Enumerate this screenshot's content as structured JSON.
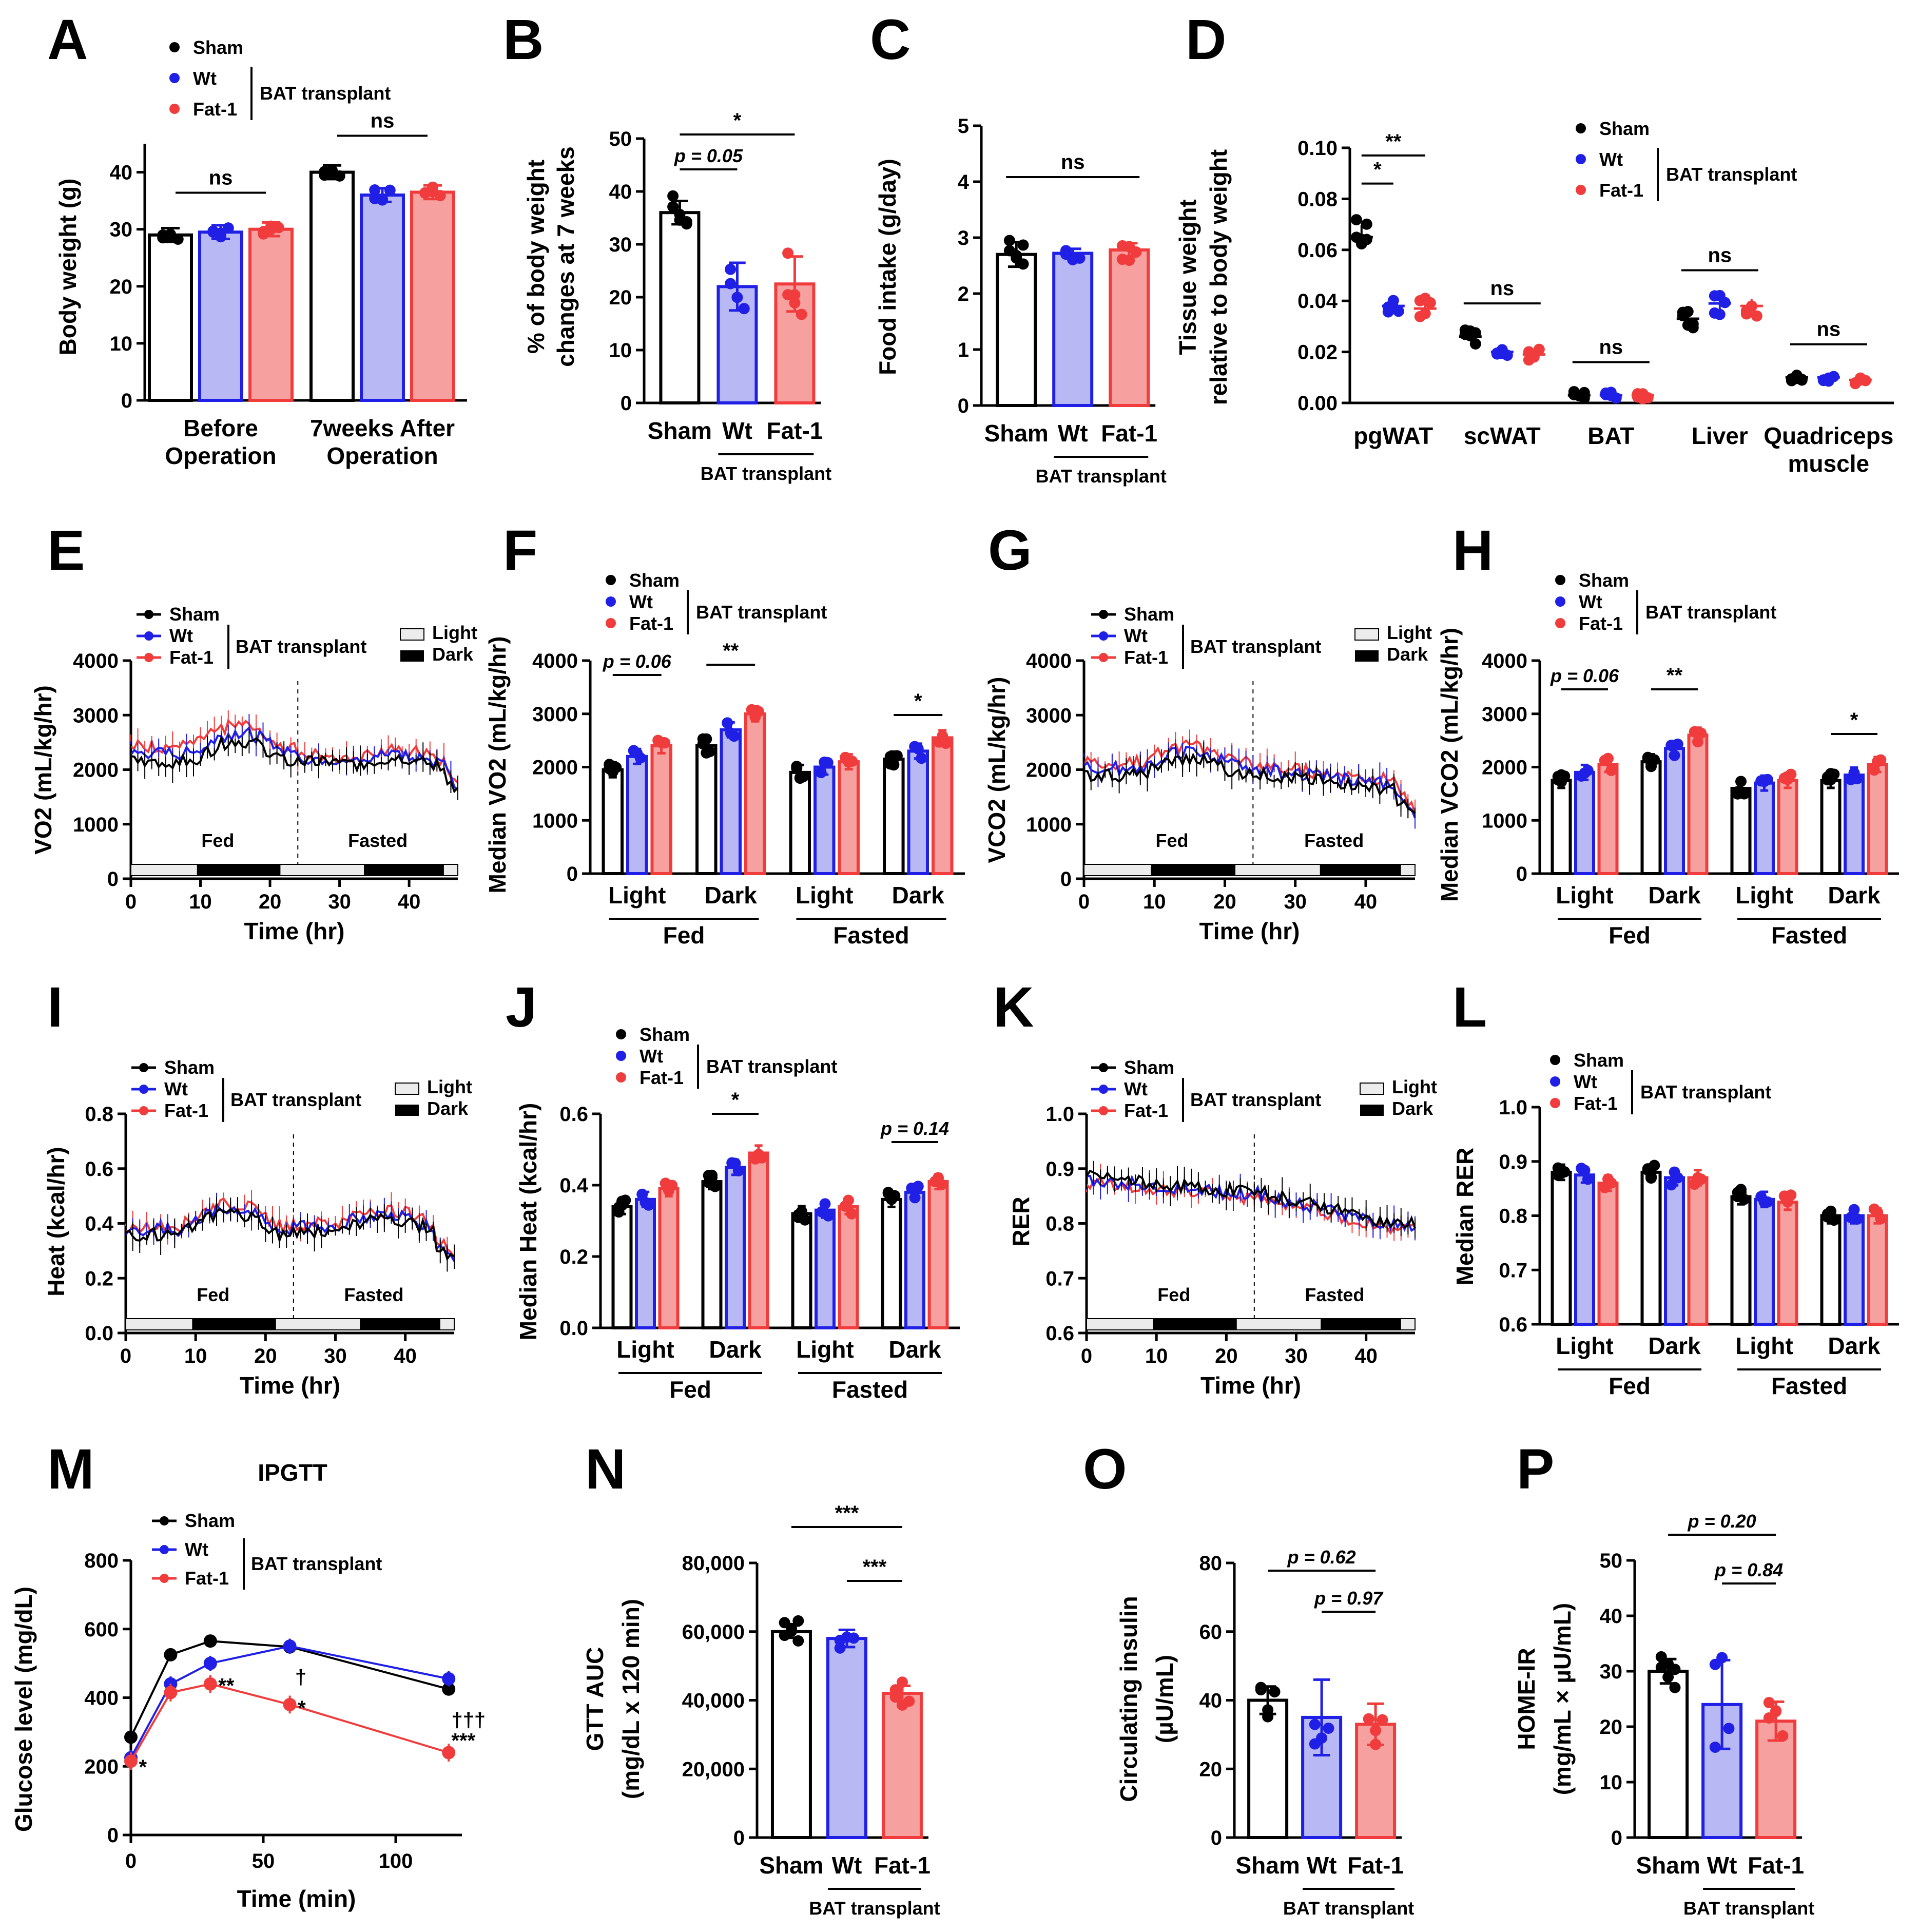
{
  "colors": {
    "sham": "#000000",
    "wt": "#1f1fe6",
    "fat1": "#f03c3c",
    "wt_fill": "#b8b8f4",
    "fat1_fill": "#f7a0a0"
  },
  "legend": {
    "sham": "Sham",
    "wt": "Wt",
    "fat1": "Fat-1",
    "group": "BAT transplant",
    "light": "Light",
    "dark": "Dark"
  },
  "chart_data": [
    {
      "id": "A",
      "type": "bar",
      "ylabel": "Body weight (g)",
      "ylim": [
        0,
        40
      ],
      "yticks": [
        0,
        10,
        20,
        30,
        40
      ],
      "categories": [
        "Before Operation",
        "7weeks After Operation"
      ],
      "series": [
        {
          "name": "Sham",
          "values": [
            29,
            40
          ]
        },
        {
          "name": "Wt",
          "values": [
            29.5,
            36
          ]
        },
        {
          "name": "Fat-1",
          "values": [
            30,
            36.5
          ]
        }
      ],
      "significance": [
        "ns",
        "ns"
      ]
    },
    {
      "id": "B",
      "type": "bar",
      "ylabel": "% of body weight changes at 7 weeks",
      "ylim": [
        0,
        50
      ],
      "yticks": [
        0,
        10,
        20,
        30,
        40,
        50
      ],
      "categories": [
        "Sham",
        "Wt",
        "Fat-1"
      ],
      "values": [
        36,
        22,
        22.5
      ],
      "errors": [
        2.2,
        4.5,
        5.2
      ],
      "group_label": "BAT transplant",
      "significance": [
        "p = 0.05",
        "*"
      ]
    },
    {
      "id": "C",
      "type": "bar",
      "ylabel": "Food intake (g/day)",
      "ylim": [
        0,
        5
      ],
      "yticks": [
        0,
        1,
        2,
        3,
        4,
        5
      ],
      "categories": [
        "Sham",
        "Wt",
        "Fat-1"
      ],
      "values": [
        2.7,
        2.72,
        2.78
      ],
      "errors": [
        0.22,
        0.08,
        0.12
      ],
      "group_label": "BAT transplant",
      "significance": [
        "ns"
      ]
    },
    {
      "id": "D",
      "type": "scatter",
      "ylabel": "Tissue weight relative to body weight",
      "ylim": [
        0,
        0.1
      ],
      "yticks": [
        "0.00",
        "0.02",
        "0.04",
        "0.06",
        "0.08",
        "0.10"
      ],
      "categories": [
        "pgWAT",
        "scWAT",
        "BAT",
        "Liver",
        "Quadriceps muscle"
      ],
      "series": [
        {
          "name": "Sham",
          "values": [
            0.065,
            0.026,
            0.003,
            0.033,
            0.01
          ]
        },
        {
          "name": "Wt",
          "values": [
            0.038,
            0.02,
            0.003,
            0.039,
            0.01
          ]
        },
        {
          "name": "Fat-1",
          "values": [
            0.037,
            0.019,
            0.003,
            0.038,
            0.009
          ]
        }
      ],
      "significance": [
        "*",
        "**",
        "ns",
        "ns",
        "ns",
        "ns"
      ]
    },
    {
      "id": "E",
      "type": "line",
      "ylabel": "VO2 (mL/kg/hr)",
      "xlabel": "Time (hr)",
      "ylim": [
        0,
        4000
      ],
      "yticks": [
        0,
        1000,
        2000,
        3000,
        4000
      ],
      "xticks": [
        0,
        10,
        20,
        30,
        40
      ],
      "phases": [
        "Fed",
        "Fasted"
      ]
    },
    {
      "id": "F",
      "type": "bar",
      "ylabel": "Median VO2 (mL/kg/hr)",
      "ylim": [
        0,
        4000
      ],
      "yticks": [
        0,
        1000,
        2000,
        3000,
        4000
      ],
      "categories": [
        "Light",
        "Dark",
        "Light",
        "Dark"
      ],
      "groups": [
        "Fed",
        "Fasted"
      ],
      "series": [
        {
          "name": "Sham",
          "values": [
            1950,
            2400,
            1900,
            2150
          ]
        },
        {
          "name": "Wt",
          "values": [
            2200,
            2700,
            2000,
            2300
          ]
        },
        {
          "name": "Fat-1",
          "values": [
            2400,
            3000,
            2100,
            2550
          ]
        }
      ],
      "significance": [
        "p = 0.06",
        "**",
        "*"
      ]
    },
    {
      "id": "G",
      "type": "line",
      "ylabel": "VCO2 (mL/kg/hr)",
      "xlabel": "Time (hr)",
      "ylim": [
        0,
        4000
      ],
      "yticks": [
        0,
        1000,
        2000,
        3000,
        4000
      ],
      "xticks": [
        0,
        10,
        20,
        30,
        40
      ],
      "phases": [
        "Fed",
        "Fasted"
      ]
    },
    {
      "id": "H",
      "type": "bar",
      "ylabel": "Median VCO2 (mL/kg/hr)",
      "ylim": [
        0,
        4000
      ],
      "yticks": [
        0,
        1000,
        2000,
        3000,
        4000
      ],
      "categories": [
        "Light",
        "Dark",
        "Light",
        "Dark"
      ],
      "groups": [
        "Fed",
        "Fasted"
      ],
      "series": [
        {
          "name": "Sham",
          "values": [
            1750,
            2100,
            1600,
            1750
          ]
        },
        {
          "name": "Wt",
          "values": [
            1900,
            2350,
            1700,
            1850
          ]
        },
        {
          "name": "Fat-1",
          "values": [
            2050,
            2600,
            1750,
            2050
          ]
        }
      ],
      "significance": [
        "p = 0.06",
        "**",
        "*"
      ]
    },
    {
      "id": "I",
      "type": "line",
      "ylabel": "Heat (kcal/hr)",
      "xlabel": "Time (hr)",
      "ylim": [
        0,
        0.8
      ],
      "yticks": [
        "0.0",
        "0.2",
        "0.4",
        "0.6",
        "0.8"
      ],
      "xticks": [
        0,
        10,
        20,
        30,
        40
      ],
      "phases": [
        "Fed",
        "Fasted"
      ]
    },
    {
      "id": "J",
      "type": "bar",
      "ylabel": "Median Heat (kcal/hr)",
      "ylim": [
        0,
        0.6
      ],
      "yticks": [
        "0.0",
        "0.2",
        "0.4",
        "0.6"
      ],
      "categories": [
        "Light",
        "Dark",
        "Light",
        "Dark"
      ],
      "groups": [
        "Fed",
        "Fasted"
      ],
      "series": [
        {
          "name": "Sham",
          "values": [
            0.34,
            0.41,
            0.32,
            0.36
          ]
        },
        {
          "name": "Wt",
          "values": [
            0.36,
            0.45,
            0.33,
            0.38
          ]
        },
        {
          "name": "Fat-1",
          "values": [
            0.39,
            0.49,
            0.34,
            0.41
          ]
        }
      ],
      "significance": [
        "*",
        "p = 0.14"
      ]
    },
    {
      "id": "K",
      "type": "line",
      "ylabel": "RER",
      "xlabel": "Time (hr)",
      "ylim": [
        0.6,
        1.0
      ],
      "yticks": [
        "0.6",
        "0.7",
        "0.8",
        "0.9",
        "1.0"
      ],
      "xticks": [
        0,
        10,
        20,
        30,
        40
      ],
      "phases": [
        "Fed",
        "Fasted"
      ]
    },
    {
      "id": "L",
      "type": "bar",
      "ylabel": "Median RER",
      "ylim": [
        0.6,
        1.0
      ],
      "yticks": [
        "0.6",
        "0.7",
        "0.8",
        "0.9",
        "1.0"
      ],
      "categories": [
        "Light",
        "Dark",
        "Light",
        "Dark"
      ],
      "groups": [
        "Fed",
        "Fasted"
      ],
      "series": [
        {
          "name": "Sham",
          "values": [
            0.88,
            0.88,
            0.835,
            0.8
          ]
        },
        {
          "name": "Wt",
          "values": [
            0.875,
            0.87,
            0.83,
            0.8
          ]
        },
        {
          "name": "Fat-1",
          "values": [
            0.86,
            0.87,
            0.825,
            0.8
          ]
        }
      ]
    },
    {
      "id": "M",
      "type": "line",
      "title": "IPGTT",
      "ylabel": "Glucose level (mg/dL)",
      "xlabel": "Time (min)",
      "ylim": [
        0,
        800
      ],
      "yticks": [
        0,
        200,
        400,
        600,
        800
      ],
      "xticks": [
        0,
        50,
        100
      ],
      "x": [
        0,
        15,
        30,
        60,
        120
      ],
      "series": [
        {
          "name": "Sham",
          "values": [
            285,
            525,
            565,
            548,
            425
          ]
        },
        {
          "name": "Wt",
          "values": [
            225,
            440,
            500,
            550,
            455
          ]
        },
        {
          "name": "Fat-1",
          "values": [
            215,
            415,
            440,
            380,
            240
          ]
        }
      ],
      "annotations": [
        "*",
        "**",
        "†",
        "*",
        "†††",
        "***"
      ]
    },
    {
      "id": "N",
      "type": "bar",
      "ylabel": "GTT AUC (mg/dL x 120 min)",
      "ylim": [
        0,
        80000
      ],
      "yticks": [
        "0",
        "20,000",
        "40,000",
        "60,000",
        "80,000"
      ],
      "categories": [
        "Sham",
        "Wt",
        "Fat-1"
      ],
      "values": [
        60000,
        58000,
        42000
      ],
      "errors": [
        1800,
        2500,
        2200
      ],
      "group_label": "BAT transplant",
      "significance": [
        "***",
        "***"
      ]
    },
    {
      "id": "O",
      "type": "bar",
      "ylabel": "Circulating insulin (µU/mL)",
      "ylim": [
        0,
        80
      ],
      "yticks": [
        0,
        20,
        40,
        60,
        80
      ],
      "categories": [
        "Sham",
        "Wt",
        "Fat-1"
      ],
      "values": [
        40,
        35,
        33
      ],
      "errors": [
        4,
        11,
        6
      ],
      "group_label": "BAT transplant",
      "significance": [
        "p = 0.62",
        "p = 0.97"
      ]
    },
    {
      "id": "P",
      "type": "bar",
      "ylabel": "HOME-IR (mg/mL × µU/mL)",
      "ylim": [
        0,
        50
      ],
      "yticks": [
        0,
        10,
        20,
        30,
        40,
        50
      ],
      "categories": [
        "Sham",
        "Wt",
        "Fat-1"
      ],
      "values": [
        30,
        24,
        21
      ],
      "errors": [
        2.2,
        8,
        3.5
      ],
      "group_label": "BAT transplant",
      "significance": [
        "p = 0.20",
        "p = 0.84"
      ]
    }
  ]
}
